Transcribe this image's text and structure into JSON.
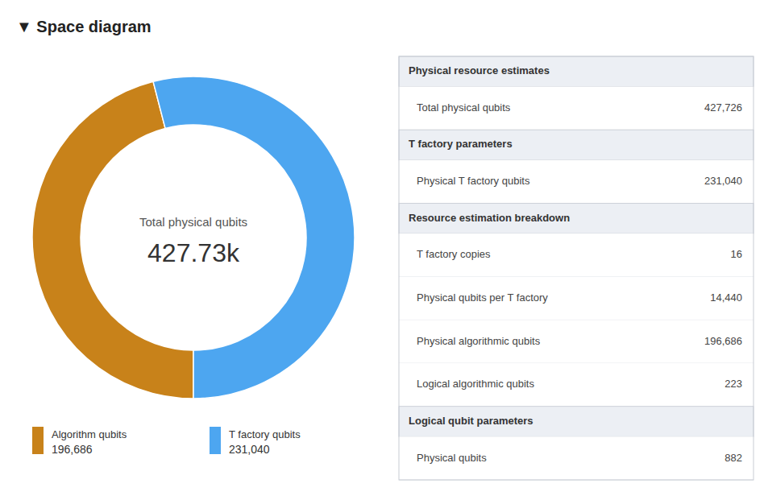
{
  "chart_data": [
    {
      "type": "pie",
      "title": "▼  Space diagram",
      "categories": [
        "Algorithm qubits",
        "T factory qubits"
      ],
      "values": [
        196686,
        231040
      ],
      "value_labels": [
        "196,686",
        "231,040"
      ],
      "colors": [
        "#c8821a",
        "#4da6f0"
      ],
      "annotations": [
        "Total physical qubits",
        "427.73k"
      ]
    },
    {
      "type": "table",
      "series": [
        {
          "name": "Physical resource estimates",
          "categories": [
            "Total physical qubits"
          ],
          "values": [
            427726
          ],
          "value_labels": [
            "427,726"
          ]
        },
        {
          "name": "T factory parameters",
          "categories": [
            "Physical T factory qubits"
          ],
          "values": [
            231040
          ],
          "value_labels": [
            "231,040"
          ]
        },
        {
          "name": "Resource estimation breakdown",
          "categories": [
            "T factory copies",
            "Physical qubits per T factory",
            "Physical algorithmic qubits",
            "Logical algorithmic qubits"
          ],
          "values": [
            16,
            14440,
            196686,
            223
          ],
          "value_labels": [
            "16",
            "14,440",
            "196,686",
            "223"
          ]
        },
        {
          "name": "Logical qubit parameters",
          "categories": [
            "Physical qubits"
          ],
          "values": [
            882
          ],
          "value_labels": [
            "882"
          ]
        }
      ]
    }
  ]
}
